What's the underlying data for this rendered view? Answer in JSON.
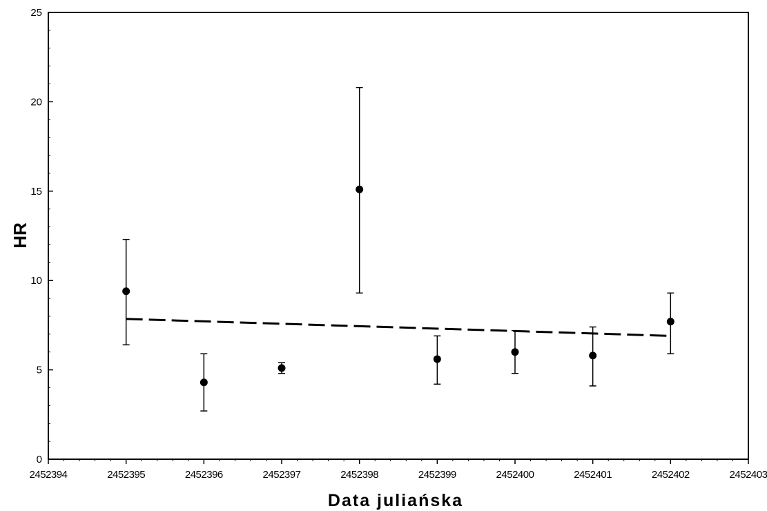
{
  "chart_data": {
    "type": "scatter",
    "title": "",
    "xlabel": "Data juliańska",
    "ylabel": "HR",
    "xlim": [
      2452394,
      2452403
    ],
    "ylim": [
      0,
      25
    ],
    "x_ticks": [
      "2452394",
      "2452395",
      "2452396",
      "2452397",
      "2452398",
      "2452399",
      "2452400",
      "2452401",
      "2452402",
      "2452403"
    ],
    "y_ticks": [
      "0",
      "5",
      "10",
      "15",
      "20",
      "25"
    ],
    "grid": false,
    "legend": "none",
    "series": [
      {
        "x": [
          2452395,
          2452396,
          2452397,
          2452398,
          2452399,
          2452400,
          2452401,
          2452402
        ],
        "y": [
          9.4,
          4.3,
          5.1,
          15.1,
          5.6,
          6.0,
          5.8,
          7.7
        ],
        "y_err_low": [
          6.4,
          2.7,
          4.8,
          9.3,
          4.2,
          4.8,
          4.1,
          5.9
        ],
        "y_err_high": [
          12.3,
          5.9,
          5.4,
          20.8,
          6.9,
          7.2,
          7.4,
          9.3
        ],
        "marker": "circle",
        "color": "#000000"
      }
    ],
    "trend_line": {
      "style": "dashed",
      "color": "#000000",
      "x": [
        2452395,
        2452402
      ],
      "y": [
        7.85,
        6.9
      ]
    }
  }
}
